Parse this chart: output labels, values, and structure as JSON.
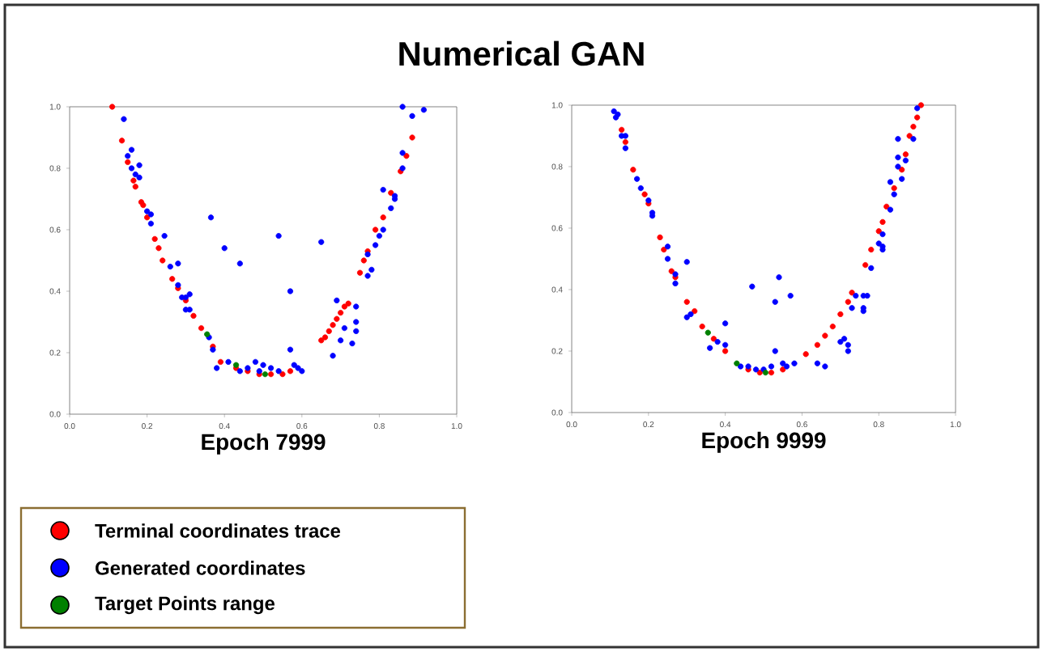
{
  "chart_data": [
    {
      "type": "scatter",
      "title": "Numerical GAN",
      "xlabel": "Epoch 7999",
      "legend": "bottom",
      "marker": "circle",
      "xlim": [
        0,
        1
      ],
      "ylim": [
        0,
        1
      ],
      "xticks": [
        {
          "value": 0,
          "label": "0.0"
        },
        {
          "value": 0.2,
          "label": "0.2"
        },
        {
          "value": 0.4,
          "label": "0.4"
        },
        {
          "value": 0.6,
          "label": "0.6"
        },
        {
          "value": 0.8,
          "label": "0.8"
        },
        {
          "value": 1,
          "label": "1.0"
        }
      ],
      "yticks": [
        {
          "value": 0,
          "label": "0.0"
        },
        {
          "value": 0.2,
          "label": "0.2"
        },
        {
          "value": 0.4,
          "label": "0.4"
        },
        {
          "value": 0.6,
          "label": "0.6"
        },
        {
          "value": 0.8,
          "label": "0.8"
        },
        {
          "value": 1,
          "label": "1.0"
        }
      ],
      "series": [
        {
          "name": "Terminal coordinates trace",
          "color": "#ff0000",
          "x": [
            0.11,
            0.135,
            0.15,
            0.165,
            0.17,
            0.185,
            0.19,
            0.2,
            0.22,
            0.23,
            0.24,
            0.265,
            0.28,
            0.3,
            0.32,
            0.34,
            0.37,
            0.39,
            0.43,
            0.46,
            0.49,
            0.52,
            0.55,
            0.57,
            0.65,
            0.66,
            0.67,
            0.68,
            0.69,
            0.7,
            0.71,
            0.72,
            0.75,
            0.76,
            0.77,
            0.79,
            0.81,
            0.83,
            0.855,
            0.87,
            0.885
          ],
          "values": [
            1.0,
            0.89,
            0.82,
            0.76,
            0.74,
            0.69,
            0.68,
            0.64,
            0.57,
            0.54,
            0.5,
            0.44,
            0.41,
            0.37,
            0.32,
            0.28,
            0.22,
            0.17,
            0.15,
            0.14,
            0.13,
            0.13,
            0.13,
            0.14,
            0.24,
            0.25,
            0.27,
            0.29,
            0.31,
            0.33,
            0.35,
            0.36,
            0.46,
            0.5,
            0.53,
            0.6,
            0.64,
            0.72,
            0.79,
            0.84,
            0.9
          ]
        },
        {
          "name": "Generated coordinates",
          "color": "#0000ff",
          "x": [
            0.14,
            0.15,
            0.16,
            0.16,
            0.17,
            0.18,
            0.18,
            0.2,
            0.21,
            0.21,
            0.245,
            0.26,
            0.28,
            0.28,
            0.29,
            0.3,
            0.3,
            0.31,
            0.31,
            0.36,
            0.37,
            0.38,
            0.365,
            0.4,
            0.44,
            0.54,
            0.57,
            0.65,
            0.41,
            0.44,
            0.46,
            0.48,
            0.49,
            0.5,
            0.52,
            0.54,
            0.57,
            0.58,
            0.6,
            0.59,
            0.69,
            0.71,
            0.7,
            0.68,
            0.73,
            0.74,
            0.74,
            0.74,
            0.77,
            0.78,
            0.77,
            0.79,
            0.8,
            0.81,
            0.81,
            0.83,
            0.84,
            0.84,
            0.86,
            0.86,
            0.86,
            0.885,
            0.915
          ],
          "values": [
            0.96,
            0.84,
            0.86,
            0.8,
            0.78,
            0.77,
            0.81,
            0.66,
            0.65,
            0.62,
            0.58,
            0.48,
            0.49,
            0.42,
            0.38,
            0.34,
            0.38,
            0.39,
            0.34,
            0.25,
            0.21,
            0.15,
            0.64,
            0.54,
            0.49,
            0.58,
            0.4,
            0.56,
            0.17,
            0.14,
            0.15,
            0.17,
            0.14,
            0.16,
            0.15,
            0.14,
            0.21,
            0.16,
            0.14,
            0.15,
            0.37,
            0.28,
            0.24,
            0.19,
            0.23,
            0.27,
            0.3,
            0.35,
            0.45,
            0.47,
            0.52,
            0.55,
            0.58,
            0.6,
            0.73,
            0.67,
            0.7,
            0.71,
            0.8,
            0.85,
            1.0,
            0.97,
            0.99
          ]
        },
        {
          "name": "Target Points range",
          "color": "#008000",
          "x": [
            0.355,
            0.43,
            0.505
          ],
          "values": [
            0.26,
            0.16,
            0.13
          ]
        }
      ]
    },
    {
      "type": "scatter",
      "xlabel": "Epoch 9999",
      "marker": "circle",
      "xlim": [
        0,
        1
      ],
      "ylim": [
        0,
        1
      ],
      "xticks": [
        {
          "value": 0,
          "label": "0.0"
        },
        {
          "value": 0.2,
          "label": "0.2"
        },
        {
          "value": 0.4,
          "label": "0.4"
        },
        {
          "value": 0.6,
          "label": "0.6"
        },
        {
          "value": 0.8,
          "label": "0.8"
        },
        {
          "value": 1,
          "label": "1.0"
        }
      ],
      "yticks": [
        {
          "value": 0,
          "label": "0.0"
        },
        {
          "value": 0.2,
          "label": "0.2"
        },
        {
          "value": 0.4,
          "label": "0.4"
        },
        {
          "value": 0.6,
          "label": "0.6"
        },
        {
          "value": 0.8,
          "label": "0.8"
        },
        {
          "value": 1,
          "label": "1.0"
        }
      ],
      "series": [
        {
          "color": "#ff0000",
          "x": [
            0.13,
            0.14,
            0.16,
            0.19,
            0.2,
            0.23,
            0.24,
            0.26,
            0.27,
            0.3,
            0.32,
            0.34,
            0.37,
            0.4,
            0.46,
            0.49,
            0.52,
            0.55,
            0.61,
            0.64,
            0.66,
            0.68,
            0.7,
            0.72,
            0.73,
            0.765,
            0.78,
            0.8,
            0.81,
            0.82,
            0.84,
            0.86,
            0.87,
            0.88,
            0.89,
            0.9,
            0.91
          ],
          "values": [
            0.92,
            0.88,
            0.79,
            0.71,
            0.68,
            0.57,
            0.53,
            0.46,
            0.44,
            0.36,
            0.33,
            0.28,
            0.24,
            0.2,
            0.14,
            0.13,
            0.13,
            0.14,
            0.19,
            0.22,
            0.25,
            0.28,
            0.32,
            0.36,
            0.39,
            0.48,
            0.53,
            0.59,
            0.62,
            0.67,
            0.73,
            0.79,
            0.84,
            0.9,
            0.93,
            0.96,
            1.0
          ]
        },
        {
          "color": "#0000ff",
          "x": [
            0.11,
            0.115,
            0.12,
            0.13,
            0.14,
            0.14,
            0.17,
            0.18,
            0.2,
            0.21,
            0.21,
            0.25,
            0.25,
            0.27,
            0.27,
            0.3,
            0.3,
            0.31,
            0.36,
            0.38,
            0.4,
            0.4,
            0.44,
            0.46,
            0.47,
            0.48,
            0.5,
            0.52,
            0.53,
            0.53,
            0.54,
            0.55,
            0.56,
            0.57,
            0.58,
            0.64,
            0.66,
            0.7,
            0.71,
            0.72,
            0.72,
            0.73,
            0.74,
            0.76,
            0.76,
            0.77,
            0.76,
            0.78,
            0.8,
            0.81,
            0.81,
            0.81,
            0.83,
            0.83,
            0.84,
            0.85,
            0.85,
            0.85,
            0.86,
            0.87,
            0.89,
            0.9
          ],
          "values": [
            0.98,
            0.96,
            0.97,
            0.9,
            0.9,
            0.86,
            0.76,
            0.73,
            0.69,
            0.65,
            0.64,
            0.54,
            0.5,
            0.45,
            0.42,
            0.49,
            0.31,
            0.32,
            0.21,
            0.23,
            0.29,
            0.22,
            0.15,
            0.15,
            0.41,
            0.14,
            0.14,
            0.15,
            0.36,
            0.2,
            0.44,
            0.16,
            0.15,
            0.38,
            0.16,
            0.16,
            0.15,
            0.23,
            0.24,
            0.2,
            0.22,
            0.34,
            0.38,
            0.38,
            0.34,
            0.38,
            0.33,
            0.47,
            0.55,
            0.54,
            0.53,
            0.58,
            0.66,
            0.75,
            0.71,
            0.8,
            0.83,
            0.89,
            0.76,
            0.82,
            0.89,
            0.99
          ]
        },
        {
          "color": "#008000",
          "x": [
            0.355,
            0.43,
            0.505
          ],
          "values": [
            0.26,
            0.16,
            0.13
          ]
        }
      ]
    }
  ]
}
